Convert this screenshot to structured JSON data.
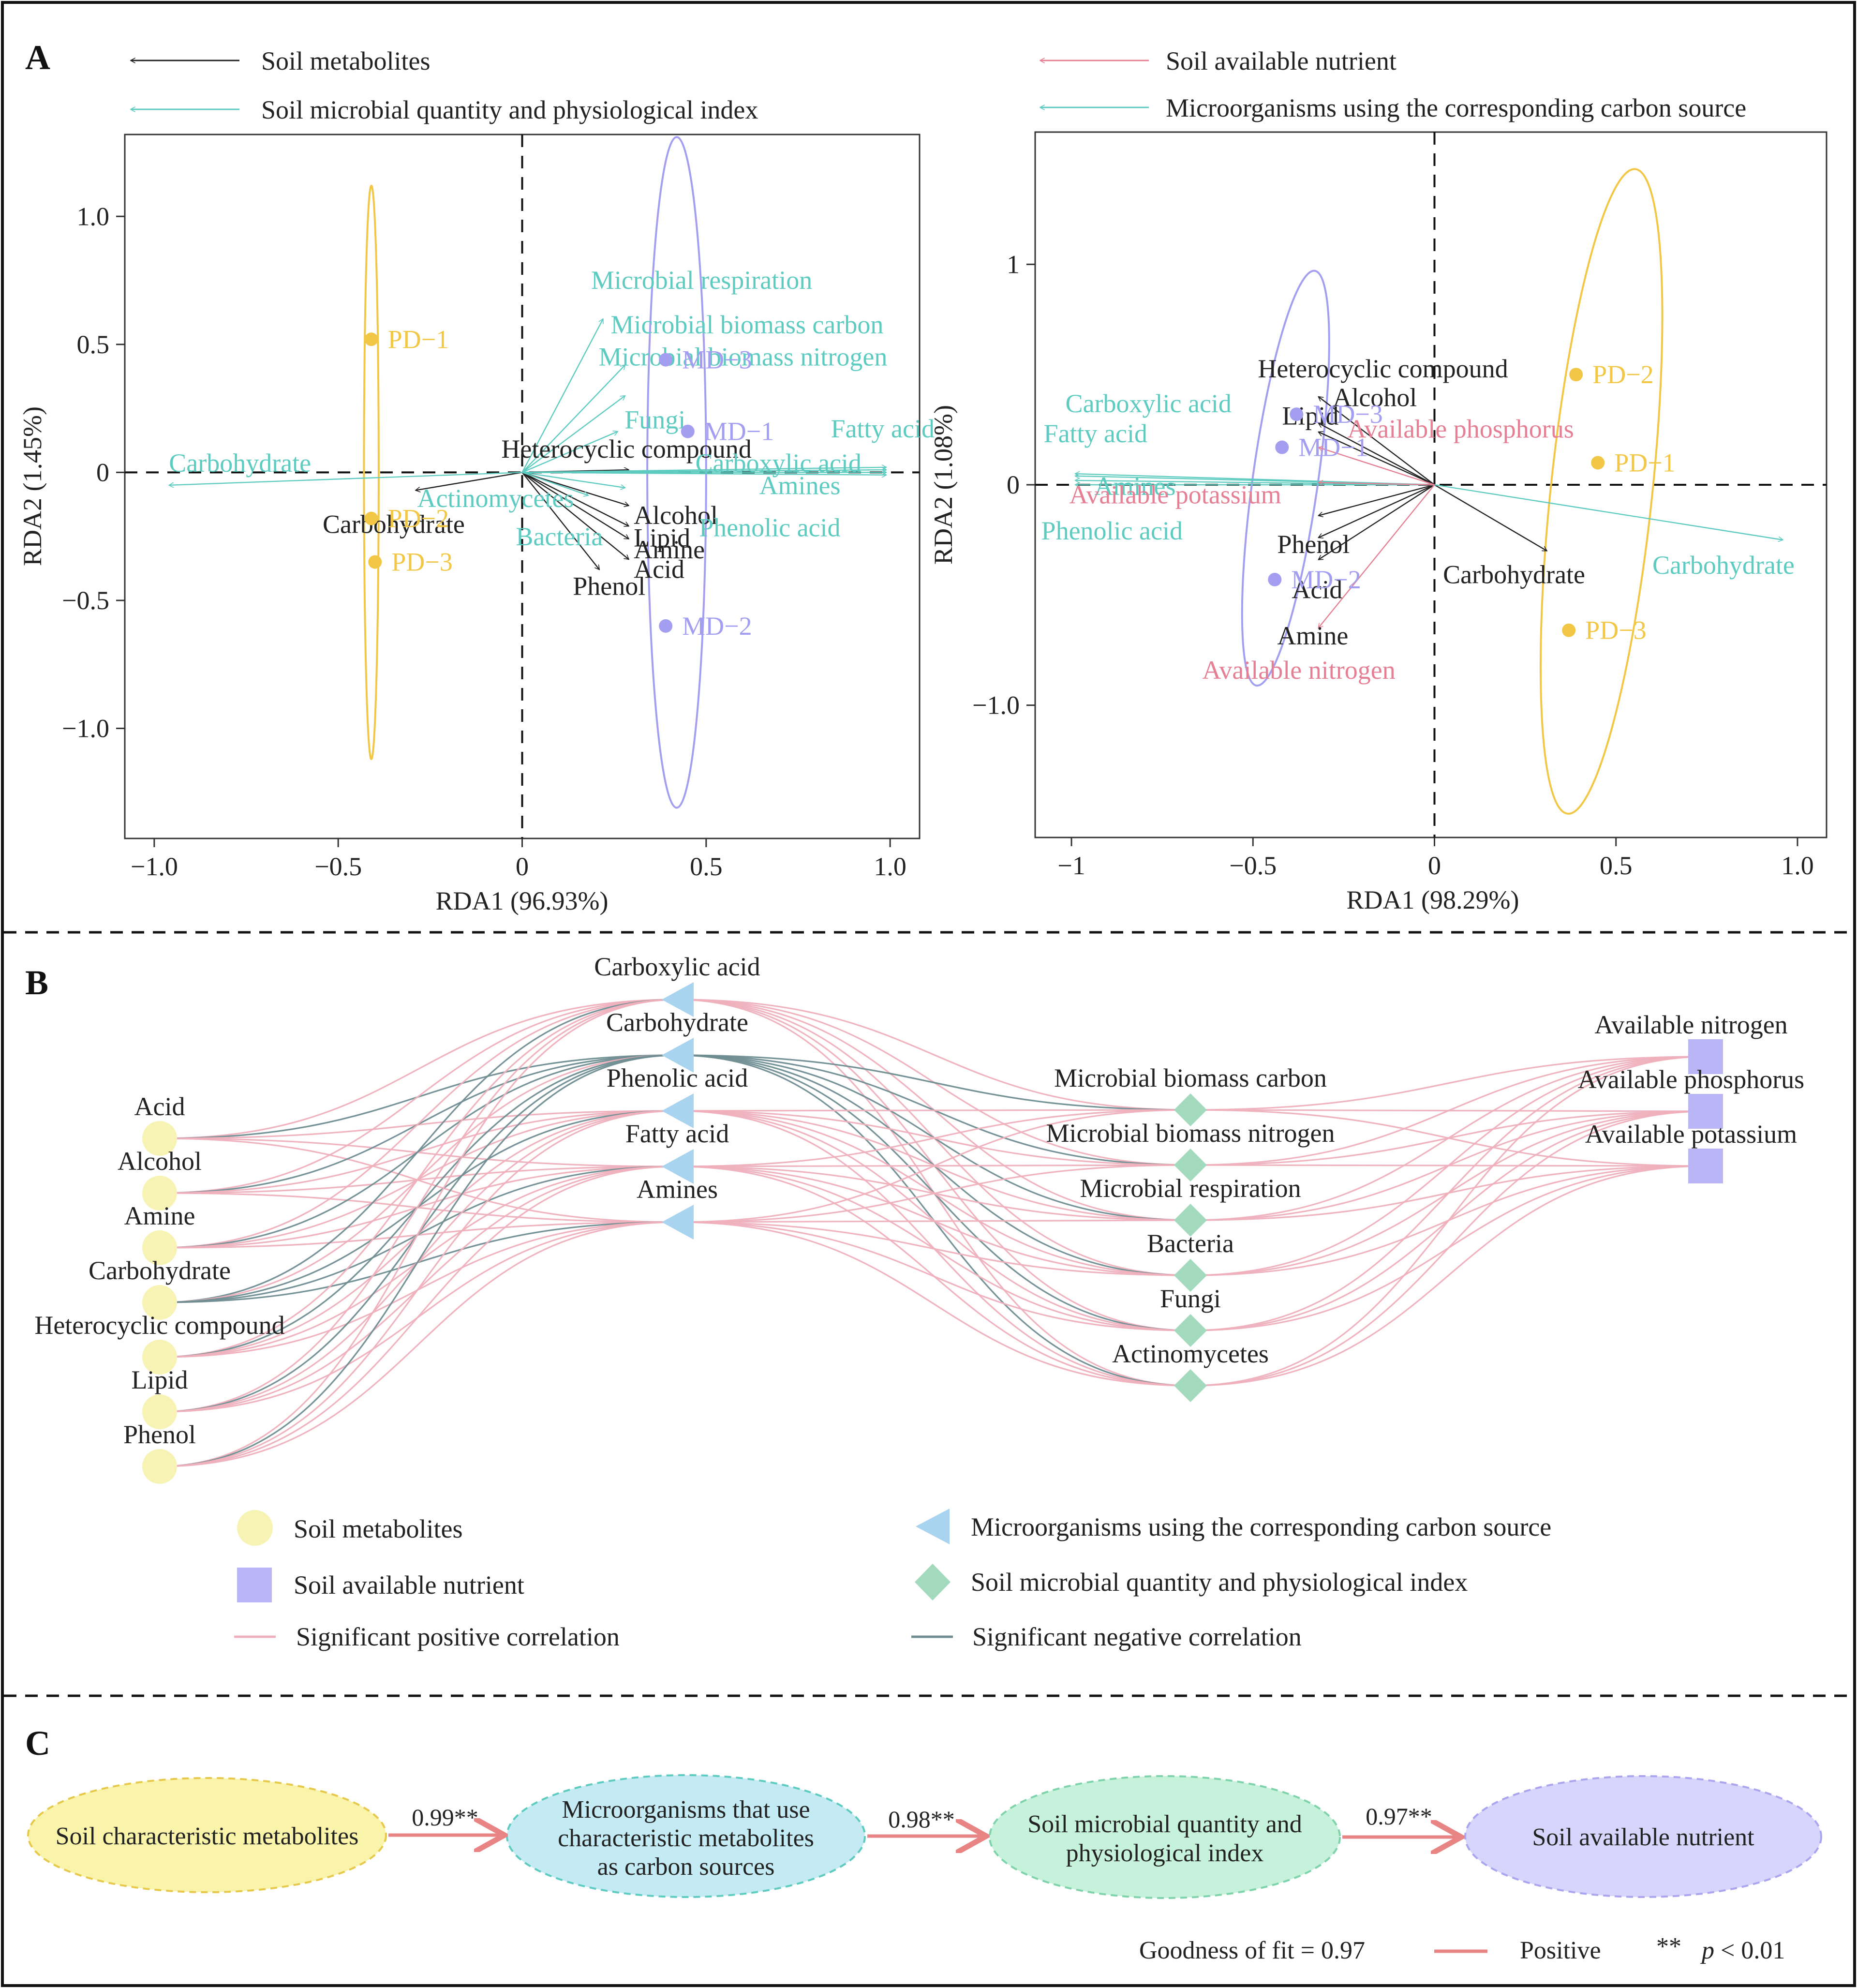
{
  "colors": {
    "black": "#222222",
    "teal": "#5ecbc0",
    "pink": "#e57f93",
    "pd": "#f2c745",
    "md": "#a49ef0",
    "axis": "#333333",
    "pos_line": "#eeb0bc",
    "neg_line": "#6f8d91",
    "node_yellow": "#f7f3b4",
    "node_blue": "#a9d4ef",
    "node_green": "#a3d9bd",
    "node_purple": "#b9b5f6",
    "arrow_red": "#e98484",
    "oval1": "#faf3aa",
    "oval2": "#c4ebf3",
    "oval3": "#c6f2dc",
    "oval4": "#d7d5fb"
  },
  "panel_labels": {
    "a": "A",
    "b": "B",
    "c": "C"
  },
  "chart_data": [
    {
      "type": "scatter",
      "subtype": "RDA biplot",
      "title": "",
      "xlabel": "RDA1 (96.93%)",
      "ylabel": "RDA2 (1.45%)",
      "xlim": [
        -1.08,
        1.08
      ],
      "ylim": [
        -1.43,
        1.32
      ],
      "xticks": [
        -1.0,
        -0.5,
        0,
        0.5,
        1.0
      ],
      "xtick_labels": [
        "−1.0",
        "−0.5",
        "0",
        "0.5",
        "1.0"
      ],
      "yticks": [
        1.0,
        0.5,
        0,
        -0.5,
        -1.0
      ],
      "ytick_labels": [
        "1.0",
        "0.5",
        "0",
        "−0.5",
        "−1.0"
      ],
      "legend": [
        {
          "label": "Soil metabolites",
          "color": "black"
        },
        {
          "label": "Soil microbial quantity and physiological index",
          "color": "teal"
        }
      ],
      "points": [
        {
          "label": "PD−1",
          "x": -0.41,
          "y": 0.52,
          "group": "PD"
        },
        {
          "label": "PD−2",
          "x": -0.41,
          "y": -0.18,
          "group": "PD"
        },
        {
          "label": "PD−3",
          "x": -0.4,
          "y": -0.35,
          "group": "PD"
        },
        {
          "label": "MD−3",
          "x": 0.39,
          "y": 0.44,
          "group": "MD"
        },
        {
          "label": "MD−1",
          "x": 0.45,
          "y": 0.16,
          "group": "MD"
        },
        {
          "label": "MD−2",
          "x": 0.39,
          "y": -0.6,
          "group": "MD"
        }
      ],
      "ellipses": [
        {
          "group": "PD",
          "cx": -0.41,
          "cy": 0.0,
          "rx": 0.02,
          "ry": 1.12
        },
        {
          "group": "MD",
          "cx": 0.42,
          "cy": 0.0,
          "rx": 0.08,
          "ry": 1.31
        }
      ],
      "arrows_black": [
        {
          "label": "Heterocyclic compound",
          "x": 0.29,
          "y": 0.01
        },
        {
          "label": "Carbohydrate",
          "x": -0.29,
          "y": -0.07
        },
        {
          "label": "Alcohol",
          "x": 0.29,
          "y": -0.13
        },
        {
          "label": "Lipid",
          "x": 0.29,
          "y": -0.21
        },
        {
          "label": "Amine",
          "x": 0.29,
          "y": -0.26
        },
        {
          "label": "Acid",
          "x": 0.29,
          "y": -0.34
        },
        {
          "label": "Phenol",
          "x": 0.21,
          "y": -0.38
        }
      ],
      "arrows_teal": [
        {
          "label": "Microbial respiration",
          "x": 0.22,
          "y": 0.6
        },
        {
          "label": "Microbial biomass carbon",
          "x": 0.28,
          "y": 0.42
        },
        {
          "label": "Microbial biomass nitrogen",
          "x": 0.28,
          "y": 0.3
        },
        {
          "label": "Fungi",
          "x": 0.26,
          "y": 0.16
        },
        {
          "label": "Carbohydrate",
          "x": -0.96,
          "y": -0.05
        },
        {
          "label": "Fatty acid",
          "x": 0.99,
          "y": 0.02
        },
        {
          "label": "Carboxylic acid",
          "x": 0.99,
          "y": 0.01
        },
        {
          "label": "Amines",
          "x": 0.99,
          "y": 0.0
        },
        {
          "label": "Phenolic acid",
          "x": 0.99,
          "y": -0.01
        },
        {
          "label": "Actinomycetes",
          "x": 0.28,
          "y": -0.06
        },
        {
          "label": "Bacteria",
          "x": 0.18,
          "y": -0.09
        }
      ]
    },
    {
      "type": "scatter",
      "subtype": "RDA biplot",
      "title": "",
      "xlabel": "RDA1 (98.29%)",
      "ylabel": "RDA2 (1.08%)",
      "xlim": [
        -1.1,
        1.08
      ],
      "ylim": [
        -1.6,
        1.6
      ],
      "xticks": [
        -1,
        -0.5,
        0,
        0.5,
        1.0
      ],
      "xtick_labels": [
        "−1",
        "−0.5",
        "0",
        "0.5",
        "1.0"
      ],
      "yticks": [
        1,
        0,
        -1.0
      ],
      "ytick_labels": [
        "1",
        "0",
        "−1.0"
      ],
      "legend": [
        {
          "label": "Soil available nutrient",
          "color": "pink"
        },
        {
          "label": "Microorganisms using the corresponding carbon source",
          "color": "teal"
        }
      ],
      "points": [
        {
          "label": "MD−3",
          "x": -0.38,
          "y": 0.32,
          "group": "MD"
        },
        {
          "label": "MD−1",
          "x": -0.42,
          "y": 0.17,
          "group": "MD"
        },
        {
          "label": "MD−2",
          "x": -0.44,
          "y": -0.43,
          "group": "MD"
        },
        {
          "label": "PD−2",
          "x": 0.39,
          "y": 0.5,
          "group": "PD"
        },
        {
          "label": "PD−1",
          "x": 0.45,
          "y": 0.1,
          "group": "PD"
        },
        {
          "label": "PD−3",
          "x": 0.37,
          "y": -0.66,
          "group": "PD"
        }
      ],
      "ellipses": [
        {
          "group": "MD",
          "cx": -0.41,
          "cy": 0.03,
          "rx": 0.09,
          "ry": 0.95,
          "rot": 8
        },
        {
          "group": "PD",
          "cx": 0.46,
          "cy": -0.03,
          "rx": 0.14,
          "ry": 1.47,
          "rot": 6
        }
      ],
      "arrows_black": [
        {
          "label": "Heterocyclic compound",
          "x": -0.32,
          "y": 0.4
        },
        {
          "label": "Alcohol",
          "x": -0.32,
          "y": 0.28
        },
        {
          "label": "Lipid",
          "x": -0.32,
          "y": 0.24
        },
        {
          "label": "Phenol",
          "x": -0.32,
          "y": -0.14
        },
        {
          "label": "Acid",
          "x": -0.32,
          "y": -0.24
        },
        {
          "label": "Amine",
          "x": -0.32,
          "y": -0.34
        },
        {
          "label": "Carbohydrate",
          "x": 0.31,
          "y": -0.3
        }
      ],
      "arrows_pink": [
        {
          "label": "Available phosphorus",
          "x": -0.32,
          "y": 0.17
        },
        {
          "label": "Available potassium",
          "x": -0.32,
          "y": 0.01
        },
        {
          "label": "Available nitrogen",
          "x": -0.32,
          "y": -0.65
        }
      ],
      "arrows_teal": [
        {
          "label": "Carboxylic acid",
          "x": -0.99,
          "y": 0.05
        },
        {
          "label": "Fatty acid",
          "x": -0.99,
          "y": 0.04
        },
        {
          "label": "Amines",
          "x": -0.99,
          "y": 0.02
        },
        {
          "label": "Phenolic acid",
          "x": -0.99,
          "y": 0.0
        },
        {
          "label": "Carbohydrate",
          "x": 0.96,
          "y": -0.25
        }
      ]
    }
  ],
  "network": {
    "metabolites": [
      "Acid",
      "Alcohol",
      "Amine",
      "Carbohydrate",
      "Heterocyclic compound",
      "Lipid",
      "Phenol"
    ],
    "carbon_sources": [
      "Carboxylic acid",
      "Carbohydrate",
      "Phenolic acid",
      "Fatty acid",
      "Amines"
    ],
    "microbial_indices": [
      "Microbial biomass carbon",
      "Microbial biomass nitrogen",
      "Microbial respiration",
      "Bacteria",
      "Fungi",
      "Actinomycetes"
    ],
    "nutrients": [
      "Available nitrogen",
      "Available phosphorus",
      "Available potassium"
    ],
    "legend": {
      "soil_metabolites": "Soil metabolites",
      "carbon_source": "Microorganisms using the corresponding carbon source",
      "available_nutrient": "Soil available nutrient",
      "microbial_index": "Soil microbial quantity and physiological index",
      "positive": "Significant positive correlation",
      "negative": "Significant negative correlation"
    }
  },
  "path_model": {
    "nodes": [
      "Soil characteristic metabolites",
      "Microorganisms that use characteristic metabolites as carbon sources",
      "Soil microbial quantity and physiological index",
      "Soil available nutrient"
    ],
    "node_lines": [
      [
        "Soil characteristic metabolites"
      ],
      [
        "Microorganisms that use",
        "characteristic metabolites",
        "as carbon sources"
      ],
      [
        "Soil microbial quantity and",
        "physiological index"
      ],
      [
        "Soil available nutrient"
      ]
    ],
    "coefficients": [
      "0.99**",
      "0.98**",
      "0.97**"
    ],
    "goodness_of_fit": "Goodness of fit = 0.97",
    "positive_label": "Positive",
    "significance_mark": "**",
    "p_label": "p",
    "p_value": " < 0.01"
  }
}
